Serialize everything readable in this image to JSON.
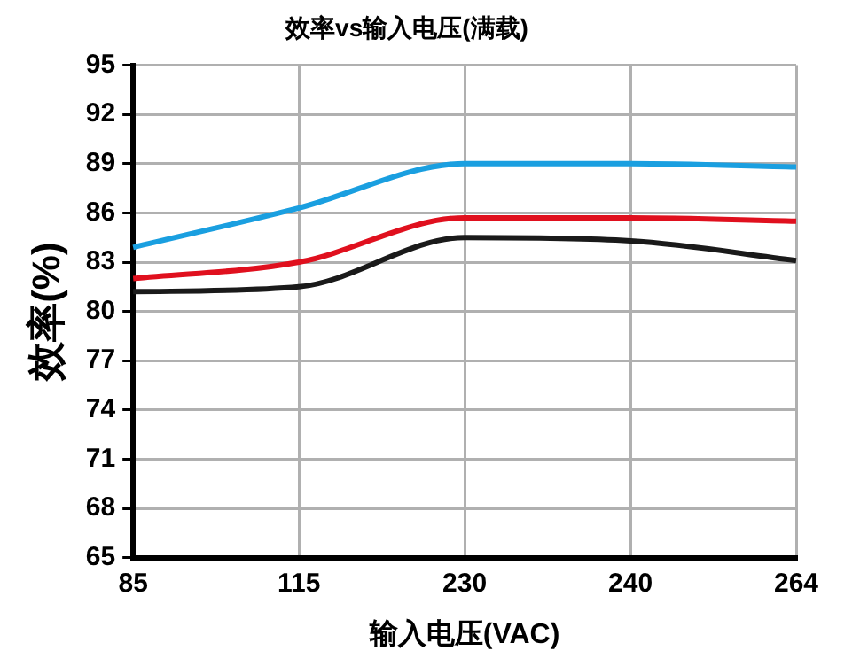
{
  "chart_data": {
    "type": "line",
    "title": "效率vs输入电压(满载)",
    "xlabel": "输入电压(VAC)",
    "ylabel": "效率(%)",
    "categories": [
      "85",
      "115",
      "230",
      "240",
      "264"
    ],
    "series": [
      {
        "color": "#1a9fe0",
        "values": [
          83.9,
          86.3,
          89.0,
          89.0,
          88.8
        ]
      },
      {
        "color": "#e0101e",
        "values": [
          82.0,
          83.0,
          85.7,
          85.7,
          85.5
        ]
      },
      {
        "color": "#1a1a1a",
        "values": [
          81.2,
          81.5,
          84.5,
          84.3,
          83.1
        ]
      }
    ],
    "ylim": [
      65,
      95
    ],
    "yticks": [
      65,
      68,
      71,
      74,
      77,
      80,
      83,
      86,
      89,
      92,
      95
    ],
    "grid": true,
    "legend": false,
    "marker": "none",
    "line_style": "solid"
  }
}
